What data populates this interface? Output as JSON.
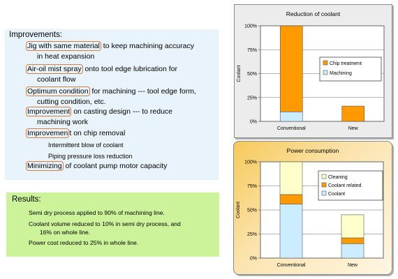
{
  "improvements": {
    "title": "Improvements:",
    "items": [
      {
        "highlight": "Jig with same material",
        "rest": " to keep machining accuracy",
        "line2": "in heat expansion"
      },
      {
        "highlight": "Air-oil mist spray",
        "rest": " onto tool edge lubrication for",
        "line2": "coolant flow"
      },
      {
        "highlight": "Optimum condition",
        "rest": " for machining --- tool edge form,",
        "line2": "cutting condition, etc."
      },
      {
        "highlight": "Improvement",
        "rest": " on casting design --- to reduce",
        "line2": "machining work"
      },
      {
        "highlight": "Improvemen",
        "rest": "t on chip removal",
        "line2": ""
      },
      {
        "highlight": "Minimizing",
        "rest": " of coolant pump motor capacity",
        "line2": ""
      }
    ],
    "sub_items": [
      "Intermittent blow of coolant",
      "Piping pressure loss reduction"
    ]
  },
  "results": {
    "title": "Results:",
    "lines": [
      "Semi dry process applied to 90% of machining line.",
      "Coolant volume reduced to 10% in semi dry process, and",
      "16% on whole line.",
      "Power cost reduced to 25% in whole line."
    ]
  },
  "chart_data": [
    {
      "type": "bar",
      "stacked": true,
      "title": "Reduction of coolant",
      "ylabel": "Coolant",
      "categories": [
        "Conventional",
        "New"
      ],
      "ylim": [
        0,
        100
      ],
      "yticks": [
        "0%",
        "25%",
        "50%",
        "75%",
        "100%"
      ],
      "series": [
        {
          "name": "Machining",
          "values": [
            10,
            0
          ],
          "color": "#ccecff"
        },
        {
          "name": "Chip treatment",
          "values": [
            90,
            16
          ],
          "color": "#ff9900"
        }
      ],
      "legend": "right",
      "grid": true,
      "plot_bg": "#ffffff"
    },
    {
      "type": "bar",
      "stacked": true,
      "title": "Power consumption",
      "ylabel": "Coolant",
      "categories": [
        "Conventional",
        "New"
      ],
      "ylim": [
        0,
        100
      ],
      "yticks": [
        "0%",
        "25%",
        "50%",
        "75%",
        "100%"
      ],
      "series": [
        {
          "name": "Coolant",
          "values": [
            56,
            15
          ],
          "color": "#ccecff"
        },
        {
          "name": "Coolant related",
          "values": [
            10,
            6
          ],
          "color": "#ff9900"
        },
        {
          "name": "Cleaning",
          "values": [
            34,
            24
          ],
          "color": "#ffffcc"
        }
      ],
      "legend": "top-right",
      "grid": true,
      "plot_bg": "#ffffff"
    }
  ]
}
